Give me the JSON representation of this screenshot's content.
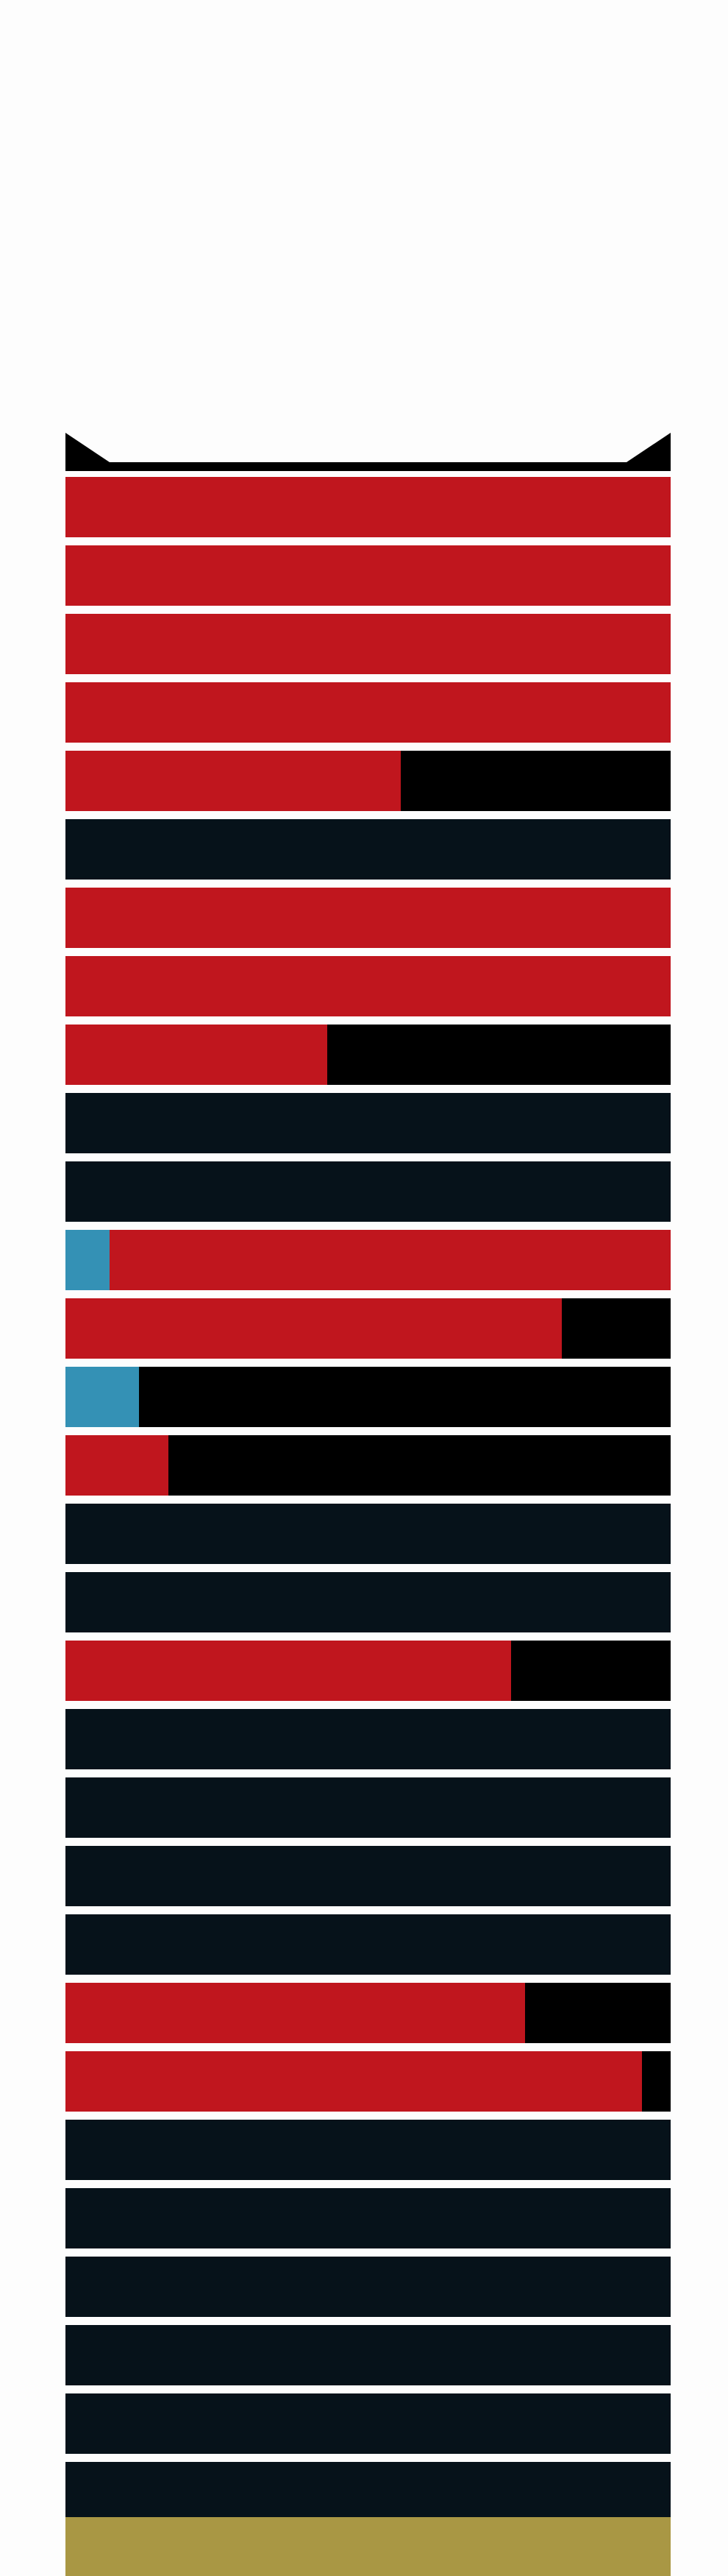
{
  "colors": {
    "page_background": "#fdfdfd",
    "bracket": "#000000",
    "empty_row": "#06121a",
    "red": "#c0161e",
    "blue": "#3491b5",
    "black": "#000000",
    "footer": "#a99744"
  },
  "rows": [
    {
      "red": 1.0,
      "blue": 0
    },
    {
      "red": 1.0,
      "blue": 0
    },
    {
      "red": 1.0,
      "blue": 0
    },
    {
      "red": 1.0,
      "blue": 0
    },
    {
      "red": 0.554,
      "blue": 0
    },
    {
      "red": 0,
      "blue": 0,
      "empty": true
    },
    {
      "red": 1.0,
      "blue": 0
    },
    {
      "red": 1.0,
      "blue": 0
    },
    {
      "red": 0.433,
      "blue": 0
    },
    {
      "red": 0,
      "blue": 0,
      "empty": true
    },
    {
      "red": 0,
      "blue": 0,
      "empty": true
    },
    {
      "red": 0.927,
      "blue": 0.073
    },
    {
      "red": 0.82,
      "blue": 0
    },
    {
      "red": 0,
      "blue": 0.122
    },
    {
      "red": 0.17,
      "blue": 0
    },
    {
      "red": 0,
      "blue": 0,
      "empty": true
    },
    {
      "red": 0,
      "blue": 0,
      "empty": true
    },
    {
      "red": 0.736,
      "blue": 0
    },
    {
      "red": 0,
      "blue": 0,
      "empty": true
    },
    {
      "red": 0,
      "blue": 0,
      "empty": true
    },
    {
      "red": 0,
      "blue": 0,
      "empty": true
    },
    {
      "red": 0,
      "blue": 0,
      "empty": true
    },
    {
      "red": 0.759,
      "blue": 0
    },
    {
      "red": 0.953,
      "blue": 0
    },
    {
      "red": 0,
      "blue": 0,
      "empty": true
    },
    {
      "red": 0,
      "blue": 0,
      "empty": true
    },
    {
      "red": 0,
      "blue": 0,
      "empty": true
    },
    {
      "red": 0,
      "blue": 0,
      "empty": true
    },
    {
      "red": 0,
      "blue": 0,
      "empty": true
    },
    {
      "red": 0,
      "blue": 0,
      "empty": true
    }
  ]
}
